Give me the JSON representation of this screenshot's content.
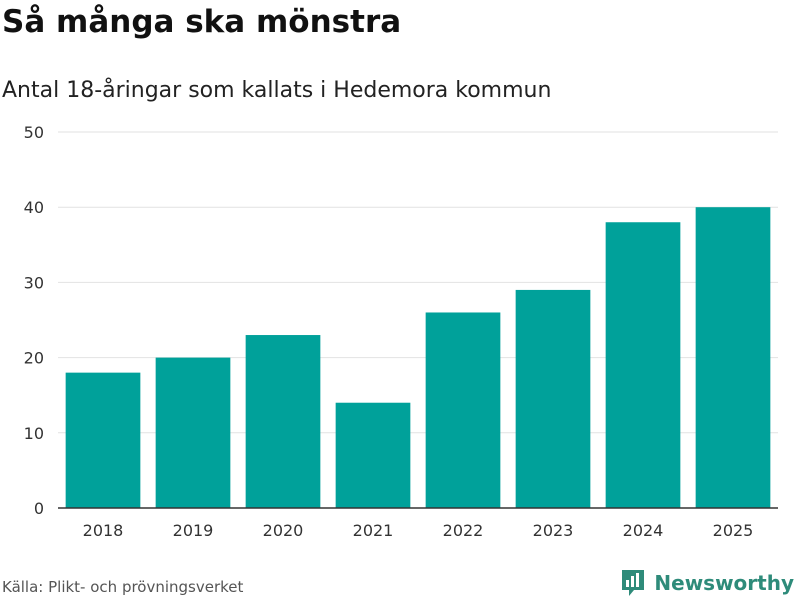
{
  "header": {
    "title": "Så många ska mönstra",
    "subtitle": "Antal 18-åringar som kallats i Hedemora kommun"
  },
  "footer": {
    "source": "Källa: Plikt- och prövningsverket",
    "brand": "Newsworthy",
    "brand_icon": "bar-chart-icon"
  },
  "colors": {
    "bar": "#00a19a",
    "grid": "#e2e2e2",
    "axis": "#333333",
    "brand": "#2e8b7a"
  },
  "chart_data": {
    "type": "bar",
    "title": "Så många ska mönstra",
    "subtitle": "Antal 18-åringar som kallats i Hedemora kommun",
    "categories": [
      "2018",
      "2019",
      "2020",
      "2021",
      "2022",
      "2023",
      "2024",
      "2025"
    ],
    "values": [
      18,
      20,
      23,
      14,
      26,
      29,
      38,
      40
    ],
    "xlabel": "",
    "ylabel": "",
    "ylim": [
      0,
      50
    ],
    "yticks": [
      0,
      10,
      20,
      30,
      40,
      50
    ],
    "grid": true,
    "legend": "none"
  }
}
